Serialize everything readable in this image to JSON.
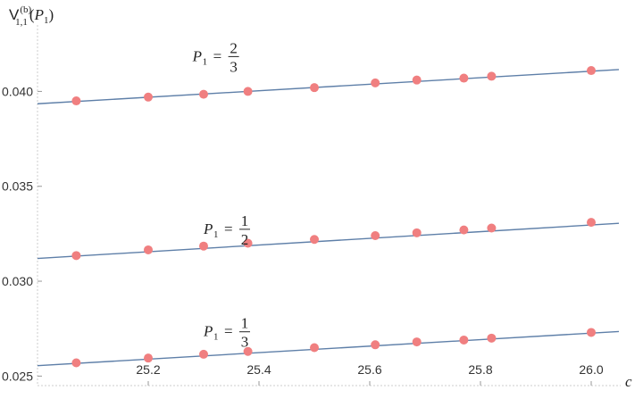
{
  "chart_data": {
    "type": "scatter",
    "ylabel": {
      "main": "V",
      "sub": "1,1",
      "sup": "(b)",
      "arg_open": "(",
      "arg_var": "P",
      "arg_sub": "1",
      "arg_close": ")"
    },
    "xlabel": "c",
    "xlim": [
      25.0,
      26.05
    ],
    "ylim": [
      0.0245,
      0.0435
    ],
    "x_ticks": [
      "25.2",
      "25.4",
      "25.6",
      "25.8",
      "26.0"
    ],
    "x_tick_values": [
      25.2,
      25.4,
      25.6,
      25.8,
      26.0
    ],
    "y_ticks": [
      "0.025",
      "0.030",
      "0.035",
      "0.040"
    ],
    "y_tick_values": [
      0.025,
      0.03,
      0.035,
      0.04
    ],
    "grid": false,
    "marker_color": "#f07f80",
    "line_color": "#5e7fa8",
    "series": [
      {
        "label": {
          "var": "P",
          "sub": "1",
          "eq": "=",
          "num": "2",
          "den": "3"
        },
        "label_at": [
          25.28,
          0.0416
        ],
        "line": [
          [
            25.0,
            0.03935
          ],
          [
            26.05,
            0.04115
          ]
        ],
        "x": [
          25.07,
          25.2,
          25.3,
          25.38,
          25.5,
          25.61,
          25.685,
          25.77,
          25.82,
          26.0
        ],
        "y": [
          0.0395,
          0.0397,
          0.03985,
          0.04,
          0.0402,
          0.04045,
          0.0406,
          0.0407,
          0.0408,
          0.0411
        ]
      },
      {
        "label": {
          "var": "P",
          "sub": "1",
          "eq": "=",
          "num": "1",
          "den": "2"
        },
        "label_at": [
          25.3,
          0.0325
        ],
        "line": [
          [
            25.0,
            0.0312
          ],
          [
            26.05,
            0.03305
          ]
        ],
        "x": [
          25.07,
          25.2,
          25.3,
          25.38,
          25.5,
          25.61,
          25.685,
          25.77,
          25.82,
          26.0
        ],
        "y": [
          0.03135,
          0.03165,
          0.03185,
          0.032,
          0.0322,
          0.0324,
          0.03255,
          0.0327,
          0.0328,
          0.0331
        ]
      },
      {
        "label": {
          "var": "P",
          "sub": "1",
          "eq": "=",
          "num": "1",
          "den": "3"
        },
        "label_at": [
          25.3,
          0.0271
        ],
        "line": [
          [
            25.0,
            0.02555
          ],
          [
            26.05,
            0.02735
          ]
        ],
        "x": [
          25.07,
          25.2,
          25.3,
          25.38,
          25.5,
          25.61,
          25.685,
          25.77,
          25.82,
          26.0
        ],
        "y": [
          0.0257,
          0.02595,
          0.02615,
          0.0263,
          0.0265,
          0.02665,
          0.0268,
          0.0269,
          0.027,
          0.0273
        ]
      }
    ]
  }
}
